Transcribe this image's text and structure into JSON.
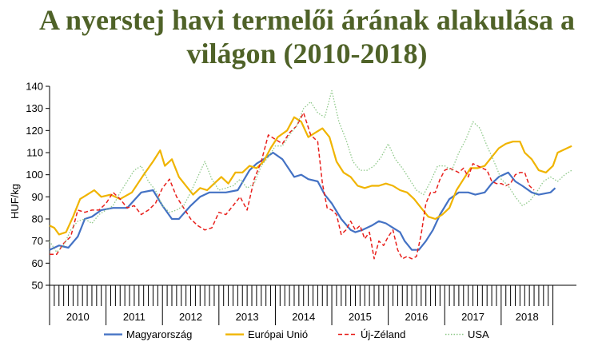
{
  "title_line1": "A nyerstej havi termelői árának alakulása a",
  "title_line2": "világon (2010-2018)",
  "chart_data": {
    "type": "line",
    "title": "A nyerstej havi termelői árának alakulása a világon (2010-2018)",
    "ylabel": "HUF/kg",
    "xlabel": "",
    "ylim": [
      50,
      140
    ],
    "yticks": [
      50,
      60,
      70,
      80,
      90,
      100,
      110,
      120,
      130,
      140
    ],
    "x_start": "2010-01",
    "x_months": 107,
    "year_labels": [
      "2010",
      "2011",
      "2012",
      "2013",
      "2014",
      "2015",
      "2016",
      "2017",
      "2018"
    ],
    "grid": false,
    "legend_position": "bottom",
    "series": [
      {
        "name": "Magyarország",
        "color": "#4472c4",
        "dash": "solid",
        "points": [
          [
            0,
            66
          ],
          [
            4,
            68
          ],
          [
            8,
            67
          ],
          [
            12,
            72
          ],
          [
            15,
            80
          ],
          [
            18,
            81
          ],
          [
            22,
            84
          ],
          [
            27,
            85
          ],
          [
            33,
            85
          ],
          [
            39,
            92
          ],
          [
            44,
            93
          ],
          [
            48,
            86
          ],
          [
            52,
            80
          ],
          [
            55,
            80
          ],
          [
            60,
            86
          ],
          [
            64,
            90
          ],
          [
            68,
            92
          ],
          [
            75,
            92
          ],
          [
            80,
            93
          ],
          [
            85,
            102
          ],
          [
            88,
            105
          ],
          [
            91,
            107
          ],
          [
            95,
            110
          ],
          [
            99,
            107
          ],
          [
            104,
            99
          ],
          [
            107,
            100
          ],
          [
            110,
            98
          ],
          [
            114,
            97
          ],
          [
            117,
            91
          ],
          [
            120,
            87
          ],
          [
            124,
            80
          ],
          [
            128,
            75
          ],
          [
            130,
            74
          ],
          [
            133,
            75
          ],
          [
            137,
            77
          ],
          [
            140,
            79
          ],
          [
            143,
            78
          ],
          [
            146,
            76
          ],
          [
            149,
            74
          ],
          [
            151,
            70
          ],
          [
            154,
            66
          ],
          [
            157,
            66
          ],
          [
            160,
            70
          ],
          [
            163,
            75
          ],
          [
            166,
            82
          ],
          [
            170,
            89
          ],
          [
            174,
            92
          ],
          [
            178,
            92
          ],
          [
            181,
            91
          ],
          [
            185,
            92
          ],
          [
            188,
            96
          ],
          [
            191,
            99
          ],
          [
            195,
            101
          ],
          [
            198,
            97
          ],
          [
            201,
            95
          ],
          [
            205,
            92
          ],
          [
            208,
            91
          ],
          [
            213,
            92
          ],
          [
            215,
            94
          ]
        ]
      },
      {
        "name": "Európai Unió",
        "color": "#f0b400",
        "dash": "solid",
        "points": [
          [
            0,
            77
          ],
          [
            2,
            76
          ],
          [
            4,
            73
          ],
          [
            7,
            74
          ],
          [
            10,
            81
          ],
          [
            13,
            89
          ],
          [
            16,
            91
          ],
          [
            19,
            93
          ],
          [
            22,
            90
          ],
          [
            26,
            91
          ],
          [
            30,
            89
          ],
          [
            35,
            92
          ],
          [
            40,
            100
          ],
          [
            44,
            106
          ],
          [
            47,
            111
          ],
          [
            49,
            104
          ],
          [
            52,
            107
          ],
          [
            55,
            99
          ],
          [
            58,
            95
          ],
          [
            61,
            91
          ],
          [
            64,
            94
          ],
          [
            67,
            93
          ],
          [
            70,
            96
          ],
          [
            73,
            99
          ],
          [
            76,
            96
          ],
          [
            79,
            101
          ],
          [
            82,
            101
          ],
          [
            85,
            104
          ],
          [
            88,
            103
          ],
          [
            91,
            106
          ],
          [
            94,
            112
          ],
          [
            97,
            117
          ],
          [
            101,
            120
          ],
          [
            104,
            126
          ],
          [
            107,
            124
          ],
          [
            110,
            117
          ],
          [
            113,
            119
          ],
          [
            116,
            121
          ],
          [
            119,
            117
          ],
          [
            122,
            106
          ],
          [
            125,
            101
          ],
          [
            128,
            99
          ],
          [
            131,
            95
          ],
          [
            134,
            94
          ],
          [
            137,
            95
          ],
          [
            140,
            95
          ],
          [
            143,
            96
          ],
          [
            146,
            95
          ],
          [
            149,
            93
          ],
          [
            152,
            92
          ],
          [
            155,
            89
          ],
          [
            158,
            85
          ],
          [
            161,
            81
          ],
          [
            164,
            80
          ],
          [
            167,
            82
          ],
          [
            170,
            85
          ],
          [
            173,
            93
          ],
          [
            176,
            98
          ],
          [
            179,
            103
          ],
          [
            182,
            103
          ],
          [
            185,
            104
          ],
          [
            188,
            108
          ],
          [
            191,
            112
          ],
          [
            194,
            114
          ],
          [
            197,
            115
          ],
          [
            200,
            115
          ],
          [
            202,
            110
          ],
          [
            205,
            107
          ],
          [
            208,
            102
          ],
          [
            211,
            101
          ],
          [
            214,
            104
          ],
          [
            216,
            110
          ],
          [
            220,
            112
          ],
          [
            222,
            113
          ]
        ]
      },
      {
        "name": "Új-Zéland",
        "color": "#e8201c",
        "dash": "dashed",
        "points": [
          [
            0,
            64
          ],
          [
            3,
            64
          ],
          [
            6,
            69
          ],
          [
            9,
            72
          ],
          [
            12,
            84
          ],
          [
            15,
            83
          ],
          [
            18,
            84
          ],
          [
            21,
            84
          ],
          [
            24,
            87
          ],
          [
            27,
            92
          ],
          [
            30,
            89
          ],
          [
            33,
            85
          ],
          [
            36,
            86
          ],
          [
            39,
            82
          ],
          [
            42,
            84
          ],
          [
            45,
            87
          ],
          [
            48,
            94
          ],
          [
            51,
            98
          ],
          [
            54,
            90
          ],
          [
            57,
            85
          ],
          [
            60,
            80
          ],
          [
            63,
            77
          ],
          [
            66,
            75
          ],
          [
            69,
            76
          ],
          [
            72,
            83
          ],
          [
            75,
            82
          ],
          [
            78,
            86
          ],
          [
            81,
            90
          ],
          [
            84,
            84
          ],
          [
            87,
            98
          ],
          [
            90,
            106
          ],
          [
            93,
            118
          ],
          [
            96,
            116
          ],
          [
            99,
            114
          ],
          [
            102,
            119
          ],
          [
            105,
            122
          ],
          [
            108,
            128
          ],
          [
            111,
            118
          ],
          [
            114,
            115
          ],
          [
            116,
            96
          ],
          [
            118,
            85
          ],
          [
            120,
            84
          ],
          [
            122,
            82
          ],
          [
            124,
            73
          ],
          [
            126,
            75
          ],
          [
            128,
            79
          ],
          [
            130,
            75
          ],
          [
            132,
            77
          ],
          [
            134,
            71
          ],
          [
            136,
            74
          ],
          [
            138,
            62
          ],
          [
            140,
            70
          ],
          [
            142,
            68
          ],
          [
            144,
            72
          ],
          [
            146,
            75
          ],
          [
            148,
            66
          ],
          [
            150,
            62
          ],
          [
            152,
            63
          ],
          [
            154,
            62
          ],
          [
            156,
            63
          ],
          [
            158,
            73
          ],
          [
            160,
            87
          ],
          [
            162,
            92
          ],
          [
            164,
            92
          ],
          [
            166,
            98
          ],
          [
            168,
            102
          ],
          [
            170,
            103
          ],
          [
            172,
            102
          ],
          [
            174,
            101
          ],
          [
            176,
            103
          ],
          [
            178,
            99
          ],
          [
            180,
            105
          ],
          [
            182,
            104
          ],
          [
            184,
            103
          ],
          [
            186,
            102
          ],
          [
            188,
            97
          ],
          [
            190,
            96
          ],
          [
            192,
            96
          ],
          [
            194,
            95
          ],
          [
            196,
            96
          ],
          [
            198,
            100
          ],
          [
            200,
            101
          ],
          [
            202,
            101
          ],
          [
            204,
            95
          ],
          [
            206,
            93
          ]
        ]
      },
      {
        "name": "USA",
        "color": "#8fc98a",
        "dash": "dotted",
        "points": [
          [
            0,
            70
          ],
          [
            3,
            65
          ],
          [
            6,
            68
          ],
          [
            9,
            75
          ],
          [
            12,
            79
          ],
          [
            15,
            80
          ],
          [
            18,
            78
          ],
          [
            21,
            82
          ],
          [
            24,
            84
          ],
          [
            27,
            86
          ],
          [
            30,
            92
          ],
          [
            33,
            97
          ],
          [
            36,
            102
          ],
          [
            39,
            104
          ],
          [
            42,
            97
          ],
          [
            45,
            93
          ],
          [
            48,
            86
          ],
          [
            51,
            83
          ],
          [
            54,
            84
          ],
          [
            57,
            86
          ],
          [
            60,
            92
          ],
          [
            63,
            99
          ],
          [
            66,
            106
          ],
          [
            69,
            98
          ],
          [
            72,
            93
          ],
          [
            75,
            94
          ],
          [
            78,
            95
          ],
          [
            81,
            98
          ],
          [
            84,
            94
          ],
          [
            87,
            96
          ],
          [
            90,
            104
          ],
          [
            93,
            108
          ],
          [
            96,
            113
          ],
          [
            99,
            113
          ],
          [
            102,
            118
          ],
          [
            105,
            122
          ],
          [
            108,
            130
          ],
          [
            111,
            133
          ],
          [
            114,
            128
          ],
          [
            117,
            126
          ],
          [
            120,
            138
          ],
          [
            123,
            124
          ],
          [
            126,
            116
          ],
          [
            129,
            106
          ],
          [
            132,
            102
          ],
          [
            135,
            102
          ],
          [
            138,
            104
          ],
          [
            141,
            108
          ],
          [
            144,
            114
          ],
          [
            147,
            107
          ],
          [
            150,
            103
          ],
          [
            153,
            98
          ],
          [
            156,
            93
          ],
          [
            159,
            91
          ],
          [
            162,
            97
          ],
          [
            165,
            104
          ],
          [
            168,
            104
          ],
          [
            171,
            102
          ],
          [
            174,
            110
          ],
          [
            177,
            116
          ],
          [
            180,
            124
          ],
          [
            183,
            121
          ],
          [
            186,
            113
          ],
          [
            189,
            106
          ],
          [
            192,
            98
          ],
          [
            195,
            95
          ],
          [
            198,
            90
          ],
          [
            201,
            86
          ],
          [
            204,
            88
          ],
          [
            207,
            92
          ],
          [
            210,
            97
          ],
          [
            213,
            99
          ],
          [
            216,
            97
          ],
          [
            219,
            100
          ],
          [
            222,
            102
          ]
        ]
      }
    ]
  }
}
